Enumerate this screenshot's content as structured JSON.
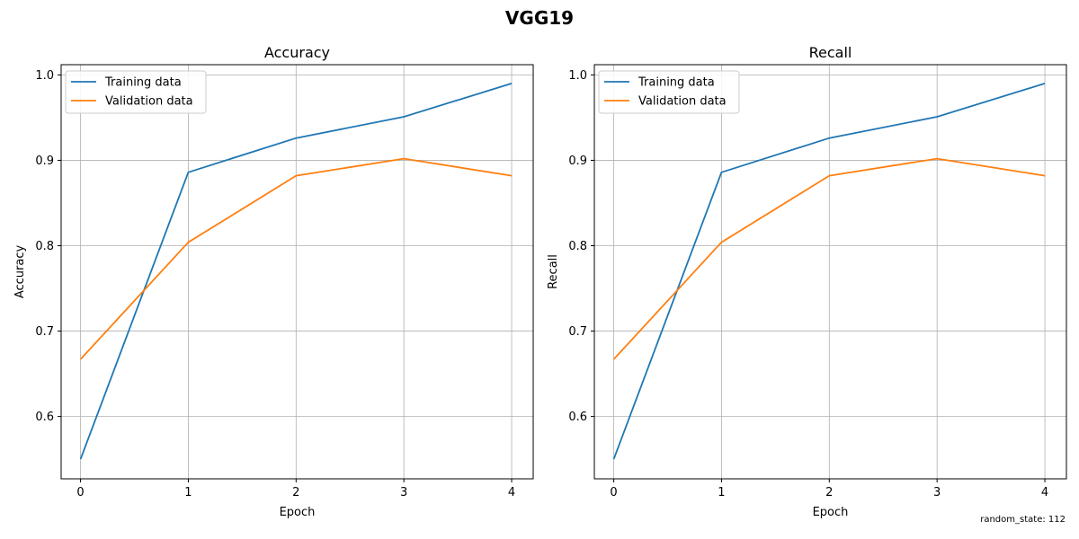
{
  "figure": {
    "suptitle": "VGG19",
    "footnote": "random_state: 112",
    "colors": {
      "training": "#1f77b4",
      "validation": "#ff7f0e",
      "grid": "#b0b0b0"
    }
  },
  "chart_data": [
    {
      "type": "line",
      "title": "Accuracy",
      "xlabel": "Epoch",
      "ylabel": "Accuracy",
      "x": [
        0,
        1,
        2,
        3,
        4
      ],
      "xticks": [
        "0",
        "1",
        "2",
        "3",
        "4"
      ],
      "yticks": [
        "0.6",
        "0.7",
        "0.8",
        "0.9",
        "1.0"
      ],
      "xlim": [
        -0.18,
        4.2
      ],
      "ylim": [
        0.527,
        1.012
      ],
      "grid": true,
      "legend": "top-left",
      "series": [
        {
          "name": "Training data",
          "color": "#1f77b4",
          "values": [
            0.55,
            0.886,
            0.926,
            0.951,
            0.99
          ]
        },
        {
          "name": "Validation data",
          "color": "#ff7f0e",
          "values": [
            0.667,
            0.804,
            0.882,
            0.902,
            0.882
          ]
        }
      ]
    },
    {
      "type": "line",
      "title": "Recall",
      "xlabel": "Epoch",
      "ylabel": "Recall",
      "x": [
        0,
        1,
        2,
        3,
        4
      ],
      "xticks": [
        "0",
        "1",
        "2",
        "3",
        "4"
      ],
      "yticks": [
        "0.6",
        "0.7",
        "0.8",
        "0.9",
        "1.0"
      ],
      "xlim": [
        -0.18,
        4.2
      ],
      "ylim": [
        0.527,
        1.012
      ],
      "grid": true,
      "legend": "top-left",
      "series": [
        {
          "name": "Training data",
          "color": "#1f77b4",
          "values": [
            0.55,
            0.886,
            0.926,
            0.951,
            0.99
          ]
        },
        {
          "name": "Validation data",
          "color": "#ff7f0e",
          "values": [
            0.667,
            0.804,
            0.882,
            0.902,
            0.882
          ]
        }
      ]
    }
  ]
}
